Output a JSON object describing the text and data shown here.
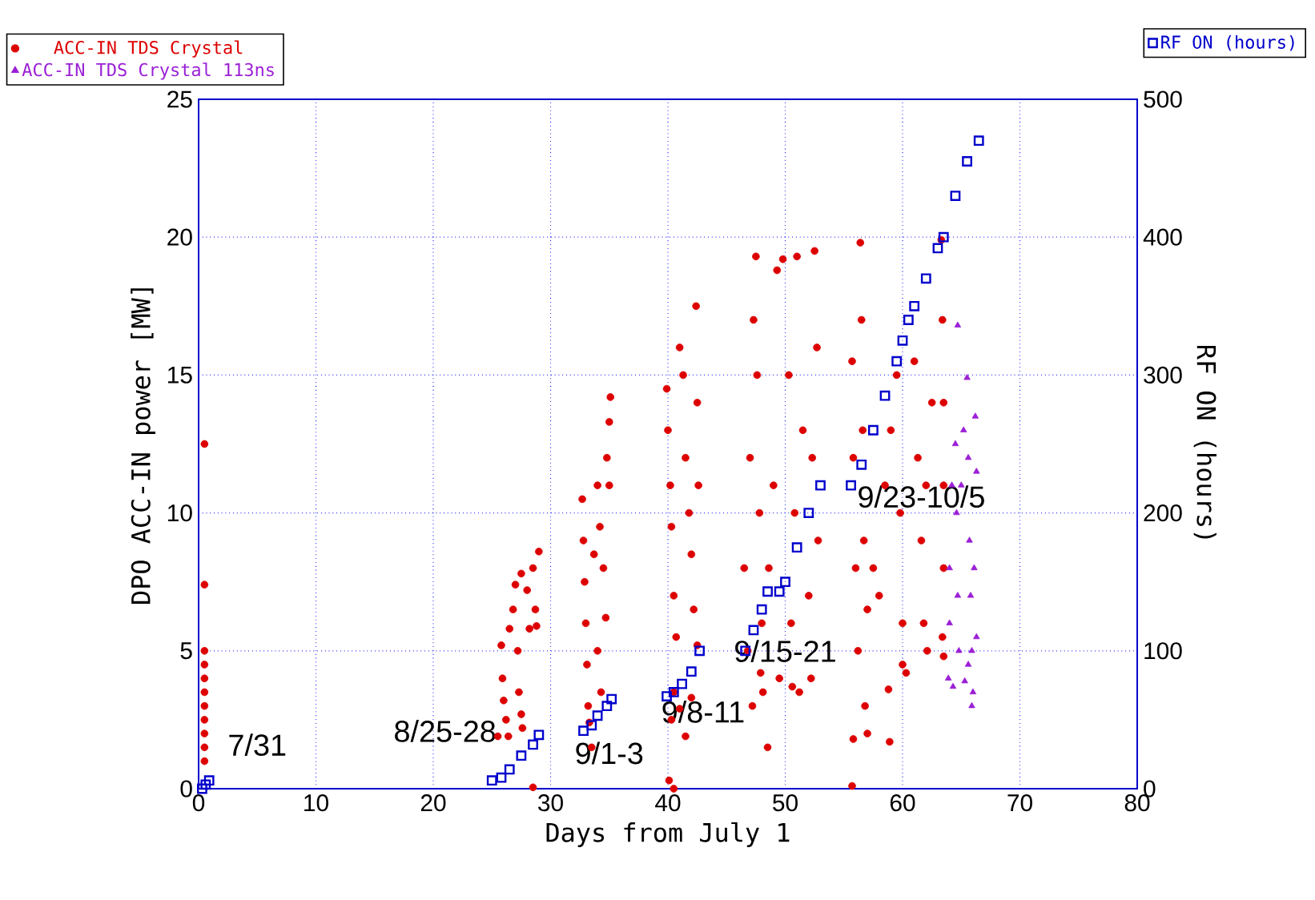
{
  "chart_data": {
    "type": "scatter",
    "xlabel": "Days from July 1",
    "ylabel": "DPO ACC-IN power [MW]",
    "y2label": "RF ON (hours)",
    "xlim": [
      0,
      80
    ],
    "xticks": [
      0,
      10,
      20,
      30,
      40,
      50,
      60,
      70,
      80
    ],
    "ylim": [
      0,
      25
    ],
    "yticks": [
      0,
      5,
      10,
      15,
      20,
      25
    ],
    "y2lim": [
      0,
      500
    ],
    "y2ticks": [
      0,
      100,
      200,
      300,
      400,
      500
    ],
    "grid": true,
    "legend": "top",
    "series": [
      {
        "name": "ACC-IN  TDS Crystal",
        "color": "#dd0000",
        "marker": "circle",
        "x": [
          0.5,
          0.5,
          0.5,
          0.5,
          0.5,
          0.5,
          0.5,
          0.5,
          0.5,
          0.5,
          0.5,
          25.5,
          25.8,
          25.9,
          26,
          26.2,
          26.4,
          26.5,
          26.8,
          27,
          27.2,
          27.3,
          27.5,
          27.6,
          27.5,
          28,
          28.2,
          28.5,
          28.7,
          28.8,
          29,
          28.5,
          32.7,
          32.8,
          32.9,
          33,
          33.1,
          33.2,
          33.3,
          33.5,
          34,
          34.2,
          34.5,
          34.7,
          34.8,
          35,
          35.1,
          35,
          34.3,
          33.7,
          34,
          39.9,
          40,
          40.2,
          40.3,
          40.5,
          40.7,
          40.5,
          40.3,
          40.1,
          40.5,
          41,
          41.3,
          41.5,
          41.8,
          42,
          42.2,
          42.4,
          42.5,
          42.6,
          42.5,
          41.5,
          41,
          42,
          46.5,
          46.8,
          47,
          47.3,
          47.5,
          47.6,
          47.8,
          48,
          48.1,
          47.2,
          48.5,
          47.9,
          48.6,
          49,
          49.3,
          49.8,
          50.3,
          50.5,
          50.8,
          51,
          51.5,
          51.2,
          52,
          52.2,
          52.5,
          52.7,
          52.8,
          52.3,
          49.5,
          50.6,
          55.7,
          55.8,
          56,
          56.2,
          55.8,
          55.7,
          56.4,
          56.5,
          56.6,
          56.7,
          56.8,
          57,
          57,
          57.5,
          58,
          58.5,
          59,
          58.8,
          59.5,
          59.8,
          60,
          60,
          60.3,
          61,
          61.3,
          61.6,
          61.8,
          62,
          62.1,
          62.5,
          58.9,
          63.3,
          63.4,
          63.5,
          63.5,
          63.5,
          63.4,
          63.5
        ],
        "values": [
          12.5,
          7.4,
          5,
          4.5,
          4,
          3.5,
          3,
          2.5,
          2,
          1.5,
          1,
          1.9,
          5.2,
          4,
          3.2,
          2.5,
          1.9,
          5.8,
          6.5,
          7.4,
          5,
          3.5,
          2.7,
          2.2,
          7.8,
          7.2,
          5.8,
          8,
          6.5,
          5.9,
          8.6,
          0.05,
          10.5,
          9,
          7.5,
          6,
          4.5,
          3,
          2.4,
          1.5,
          11,
          9.5,
          8,
          6.2,
          12,
          13.3,
          14.2,
          11,
          3.5,
          8.5,
          5,
          14.5,
          13,
          11,
          9.5,
          7,
          5.5,
          3.5,
          2.5,
          0.3,
          0,
          16,
          15,
          12,
          10,
          8.5,
          6.5,
          17.5,
          14,
          11,
          5.2,
          1.9,
          2.9,
          3.3,
          8,
          5,
          12,
          17,
          19.3,
          15,
          10,
          6,
          3.5,
          3,
          1.5,
          4.2,
          8,
          11,
          18.8,
          19.2,
          15,
          6,
          10,
          19.3,
          13,
          3.5,
          7,
          4,
          19.5,
          16,
          9,
          12,
          4,
          3.7,
          15.5,
          12,
          8,
          5,
          1.8,
          0.1,
          19.8,
          17,
          13,
          9,
          3,
          2,
          6.5,
          8,
          7,
          11,
          13,
          3.6,
          15,
          10,
          6,
          4.5,
          4.2,
          15.5,
          12,
          9,
          6,
          11,
          5,
          14,
          1.7,
          19.9,
          17,
          14,
          11,
          8,
          5.5,
          4.8
        ]
      },
      {
        "name": "ACC-IN  TDS Crystal  113ns",
        "color": "#9b1fd6",
        "marker": "triangle",
        "x": [
          63.9,
          64,
          64,
          64.2,
          64.5,
          64.6,
          64.7,
          64.8,
          64.7,
          65,
          65.2,
          65.5,
          65.6,
          65.7,
          65.8,
          65.9,
          65.6,
          66,
          65.9,
          66.2,
          66.3,
          66.1,
          66.3,
          65.3,
          64.3
        ],
        "values": [
          4,
          6,
          8,
          11,
          12.5,
          10,
          7,
          5,
          16.8,
          11,
          13,
          14.9,
          12,
          9,
          7,
          5,
          4.5,
          3.5,
          3,
          13.5,
          11.5,
          8,
          5.5,
          3.9,
          3.7
        ]
      },
      {
        "name": "RF ON (hours)",
        "color": "#0000cc",
        "marker": "square",
        "axis": "y2",
        "x": [
          0.3,
          0.6,
          0.9,
          25,
          25.8,
          26.5,
          27.5,
          28.5,
          29,
          32.8,
          33.5,
          34,
          34.8,
          35.2,
          39.9,
          40.5,
          41.2,
          42,
          42.7,
          46.6,
          47.3,
          48,
          48.5,
          49.5,
          50,
          51,
          52,
          53,
          55.6,
          56.5,
          57.5,
          58.5,
          59.5,
          60,
          60.5,
          61,
          62,
          63,
          63.5,
          64.5,
          65.5,
          66.5
        ],
        "values": [
          0,
          3,
          6,
          6,
          8,
          14,
          24,
          32,
          39,
          42,
          46,
          53,
          60,
          65,
          67,
          70,
          76,
          85,
          100,
          100,
          115,
          130,
          143,
          143,
          150,
          175,
          200,
          220,
          220,
          235,
          260,
          285,
          310,
          325,
          340,
          350,
          370,
          392,
          400,
          430,
          455,
          470
        ]
      }
    ],
    "annotations": [
      "7/31",
      "8/25-28",
      "9/1-3",
      "9/8-11",
      "9/15-21",
      "9/23-10/5"
    ]
  }
}
